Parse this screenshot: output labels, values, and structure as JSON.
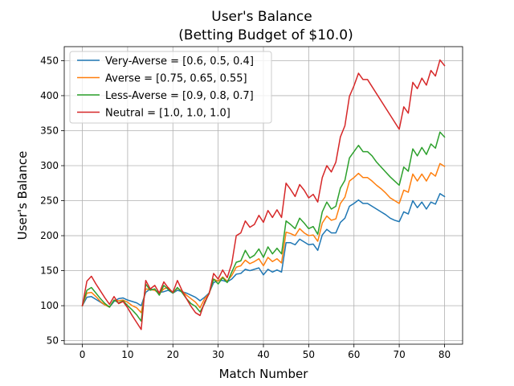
{
  "chart_data": {
    "type": "line",
    "title": "User's Balance",
    "subtitle": "(Betting Budget of $10.0)",
    "xlabel": "Match Number",
    "ylabel": "User's Balance",
    "xlim": [
      -4,
      84
    ],
    "ylim": [
      45,
      470
    ],
    "xticks": [
      0,
      10,
      20,
      30,
      40,
      50,
      60,
      70,
      80
    ],
    "yticks": [
      50,
      100,
      150,
      200,
      250,
      300,
      350,
      400,
      450
    ],
    "grid": true,
    "legend_position": "top-left",
    "series": [
      {
        "name": "Very-Averse = [0.6, 0.5, 0.4]",
        "color": "#1f77b4",
        "x": [
          0,
          1,
          2,
          3,
          4,
          5,
          6,
          7,
          8,
          9,
          10,
          11,
          12,
          13,
          14,
          15,
          16,
          17,
          18,
          19,
          20,
          21,
          22,
          23,
          24,
          25,
          26,
          27,
          28,
          29,
          30,
          31,
          32,
          33,
          34,
          35,
          36,
          37,
          38,
          39,
          40,
          41,
          42,
          43,
          44,
          45,
          46,
          47,
          48,
          49,
          50,
          51,
          52,
          53,
          54,
          55,
          56,
          57,
          58,
          59,
          60,
          61,
          62,
          63,
          64,
          65,
          66,
          67,
          68,
          69,
          70,
          71,
          72,
          73,
          74,
          75,
          76,
          77,
          78,
          79,
          80
        ],
        "values": [
          100,
          112,
          113,
          109,
          105,
          101,
          98,
          106,
          110,
          111,
          108,
          106,
          104,
          100,
          119,
          124,
          122,
          119,
          120,
          122,
          118,
          122,
          120,
          118,
          115,
          112,
          107,
          112,
          118,
          133,
          136,
          136,
          134,
          138,
          145,
          146,
          152,
          150,
          152,
          154,
          144,
          152,
          148,
          151,
          148,
          190,
          190,
          187,
          195,
          191,
          187,
          188,
          179,
          201,
          209,
          204,
          204,
          219,
          225,
          242,
          246,
          251,
          246,
          246,
          242,
          238,
          234,
          230,
          225,
          222,
          220,
          234,
          231,
          250,
          240,
          248,
          238,
          248,
          245,
          260,
          256
        ]
      },
      {
        "name": "Averse = [0.75, 0.65, 0.55]",
        "color": "#ff7f0e",
        "x": [
          0,
          1,
          2,
          3,
          4,
          5,
          6,
          7,
          8,
          9,
          10,
          11,
          12,
          13,
          14,
          15,
          16,
          17,
          18,
          19,
          20,
          21,
          22,
          23,
          24,
          25,
          26,
          27,
          28,
          29,
          30,
          31,
          32,
          33,
          34,
          35,
          36,
          37,
          38,
          39,
          40,
          41,
          42,
          43,
          44,
          45,
          46,
          47,
          48,
          49,
          50,
          51,
          52,
          53,
          54,
          55,
          56,
          57,
          58,
          59,
          60,
          61,
          62,
          63,
          64,
          65,
          66,
          67,
          68,
          69,
          70,
          71,
          72,
          73,
          74,
          75,
          76,
          77,
          78,
          79,
          80
        ],
        "values": [
          100,
          118,
          119,
          113,
          106,
          101,
          98,
          108,
          107,
          108,
          105,
          100,
          97,
          90,
          124,
          123,
          122,
          117,
          124,
          126,
          118,
          125,
          121,
          115,
          110,
          105,
          97,
          110,
          117,
          138,
          135,
          141,
          135,
          143,
          155,
          157,
          165,
          160,
          163,
          167,
          157,
          169,
          163,
          167,
          161,
          205,
          203,
          200,
          210,
          204,
          200,
          201,
          192,
          218,
          228,
          222,
          224,
          246,
          255,
          278,
          283,
          289,
          283,
          283,
          278,
          272,
          267,
          261,
          254,
          250,
          246,
          265,
          262,
          288,
          278,
          288,
          278,
          290,
          285,
          303,
          299
        ]
      },
      {
        "name": "Less-Averse = [0.9, 0.8, 0.7]",
        "color": "#2ca02c",
        "x": [
          0,
          1,
          2,
          3,
          4,
          5,
          6,
          7,
          8,
          9,
          10,
          11,
          12,
          13,
          14,
          15,
          16,
          17,
          18,
          19,
          20,
          21,
          22,
          23,
          24,
          25,
          26,
          27,
          28,
          29,
          30,
          31,
          32,
          33,
          34,
          35,
          36,
          37,
          38,
          39,
          40,
          41,
          42,
          43,
          44,
          45,
          46,
          47,
          48,
          49,
          50,
          51,
          52,
          53,
          54,
          55,
          56,
          57,
          58,
          59,
          60,
          61,
          62,
          63,
          64,
          65,
          66,
          67,
          68,
          69,
          70,
          71,
          72,
          73,
          74,
          75,
          76,
          77,
          78,
          79,
          80
        ],
        "values": [
          100,
          122,
          126,
          118,
          110,
          103,
          98,
          108,
          104,
          107,
          100,
          94,
          87,
          78,
          131,
          122,
          124,
          115,
          129,
          123,
          118,
          126,
          119,
          110,
          103,
          99,
          91,
          103,
          118,
          138,
          131,
          140,
          133,
          148,
          162,
          164,
          179,
          168,
          172,
          181,
          169,
          184,
          174,
          182,
          174,
          221,
          216,
          210,
          225,
          218,
          210,
          213,
          202,
          234,
          248,
          238,
          242,
          268,
          279,
          311,
          320,
          329,
          320,
          320,
          314,
          305,
          298,
          291,
          284,
          278,
          272,
          298,
          292,
          324,
          314,
          326,
          316,
          331,
          325,
          348,
          341
        ]
      },
      {
        "name": "Neutral = [1.0, 1.0, 1.0]",
        "color": "#d62728",
        "x": [
          0,
          1,
          2,
          3,
          4,
          5,
          6,
          7,
          8,
          9,
          10,
          11,
          12,
          13,
          14,
          15,
          16,
          17,
          18,
          19,
          20,
          21,
          22,
          23,
          24,
          25,
          26,
          27,
          28,
          29,
          30,
          31,
          32,
          33,
          34,
          35,
          36,
          37,
          38,
          39,
          40,
          41,
          42,
          43,
          44,
          45,
          46,
          47,
          48,
          49,
          50,
          51,
          52,
          53,
          54,
          55,
          56,
          57,
          58,
          59,
          60,
          61,
          62,
          63,
          70,
          71,
          72,
          73,
          74,
          75,
          76,
          77,
          78,
          79,
          80
        ],
        "values": [
          100,
          135,
          142,
          131,
          121,
          111,
          102,
          113,
          103,
          106,
          97,
          86,
          76,
          66,
          136,
          124,
          129,
          118,
          134,
          125,
          119,
          136,
          122,
          110,
          99,
          90,
          86,
          105,
          117,
          146,
          138,
          151,
          140,
          160,
          200,
          204,
          221,
          212,
          216,
          229,
          219,
          236,
          226,
          237,
          226,
          275,
          266,
          256,
          273,
          265,
          254,
          259,
          248,
          283,
          300,
          291,
          305,
          341,
          357,
          399,
          414,
          432,
          423,
          423,
          352,
          384,
          375,
          419,
          410,
          425,
          415,
          436,
          428,
          451,
          443
        ]
      }
    ]
  }
}
